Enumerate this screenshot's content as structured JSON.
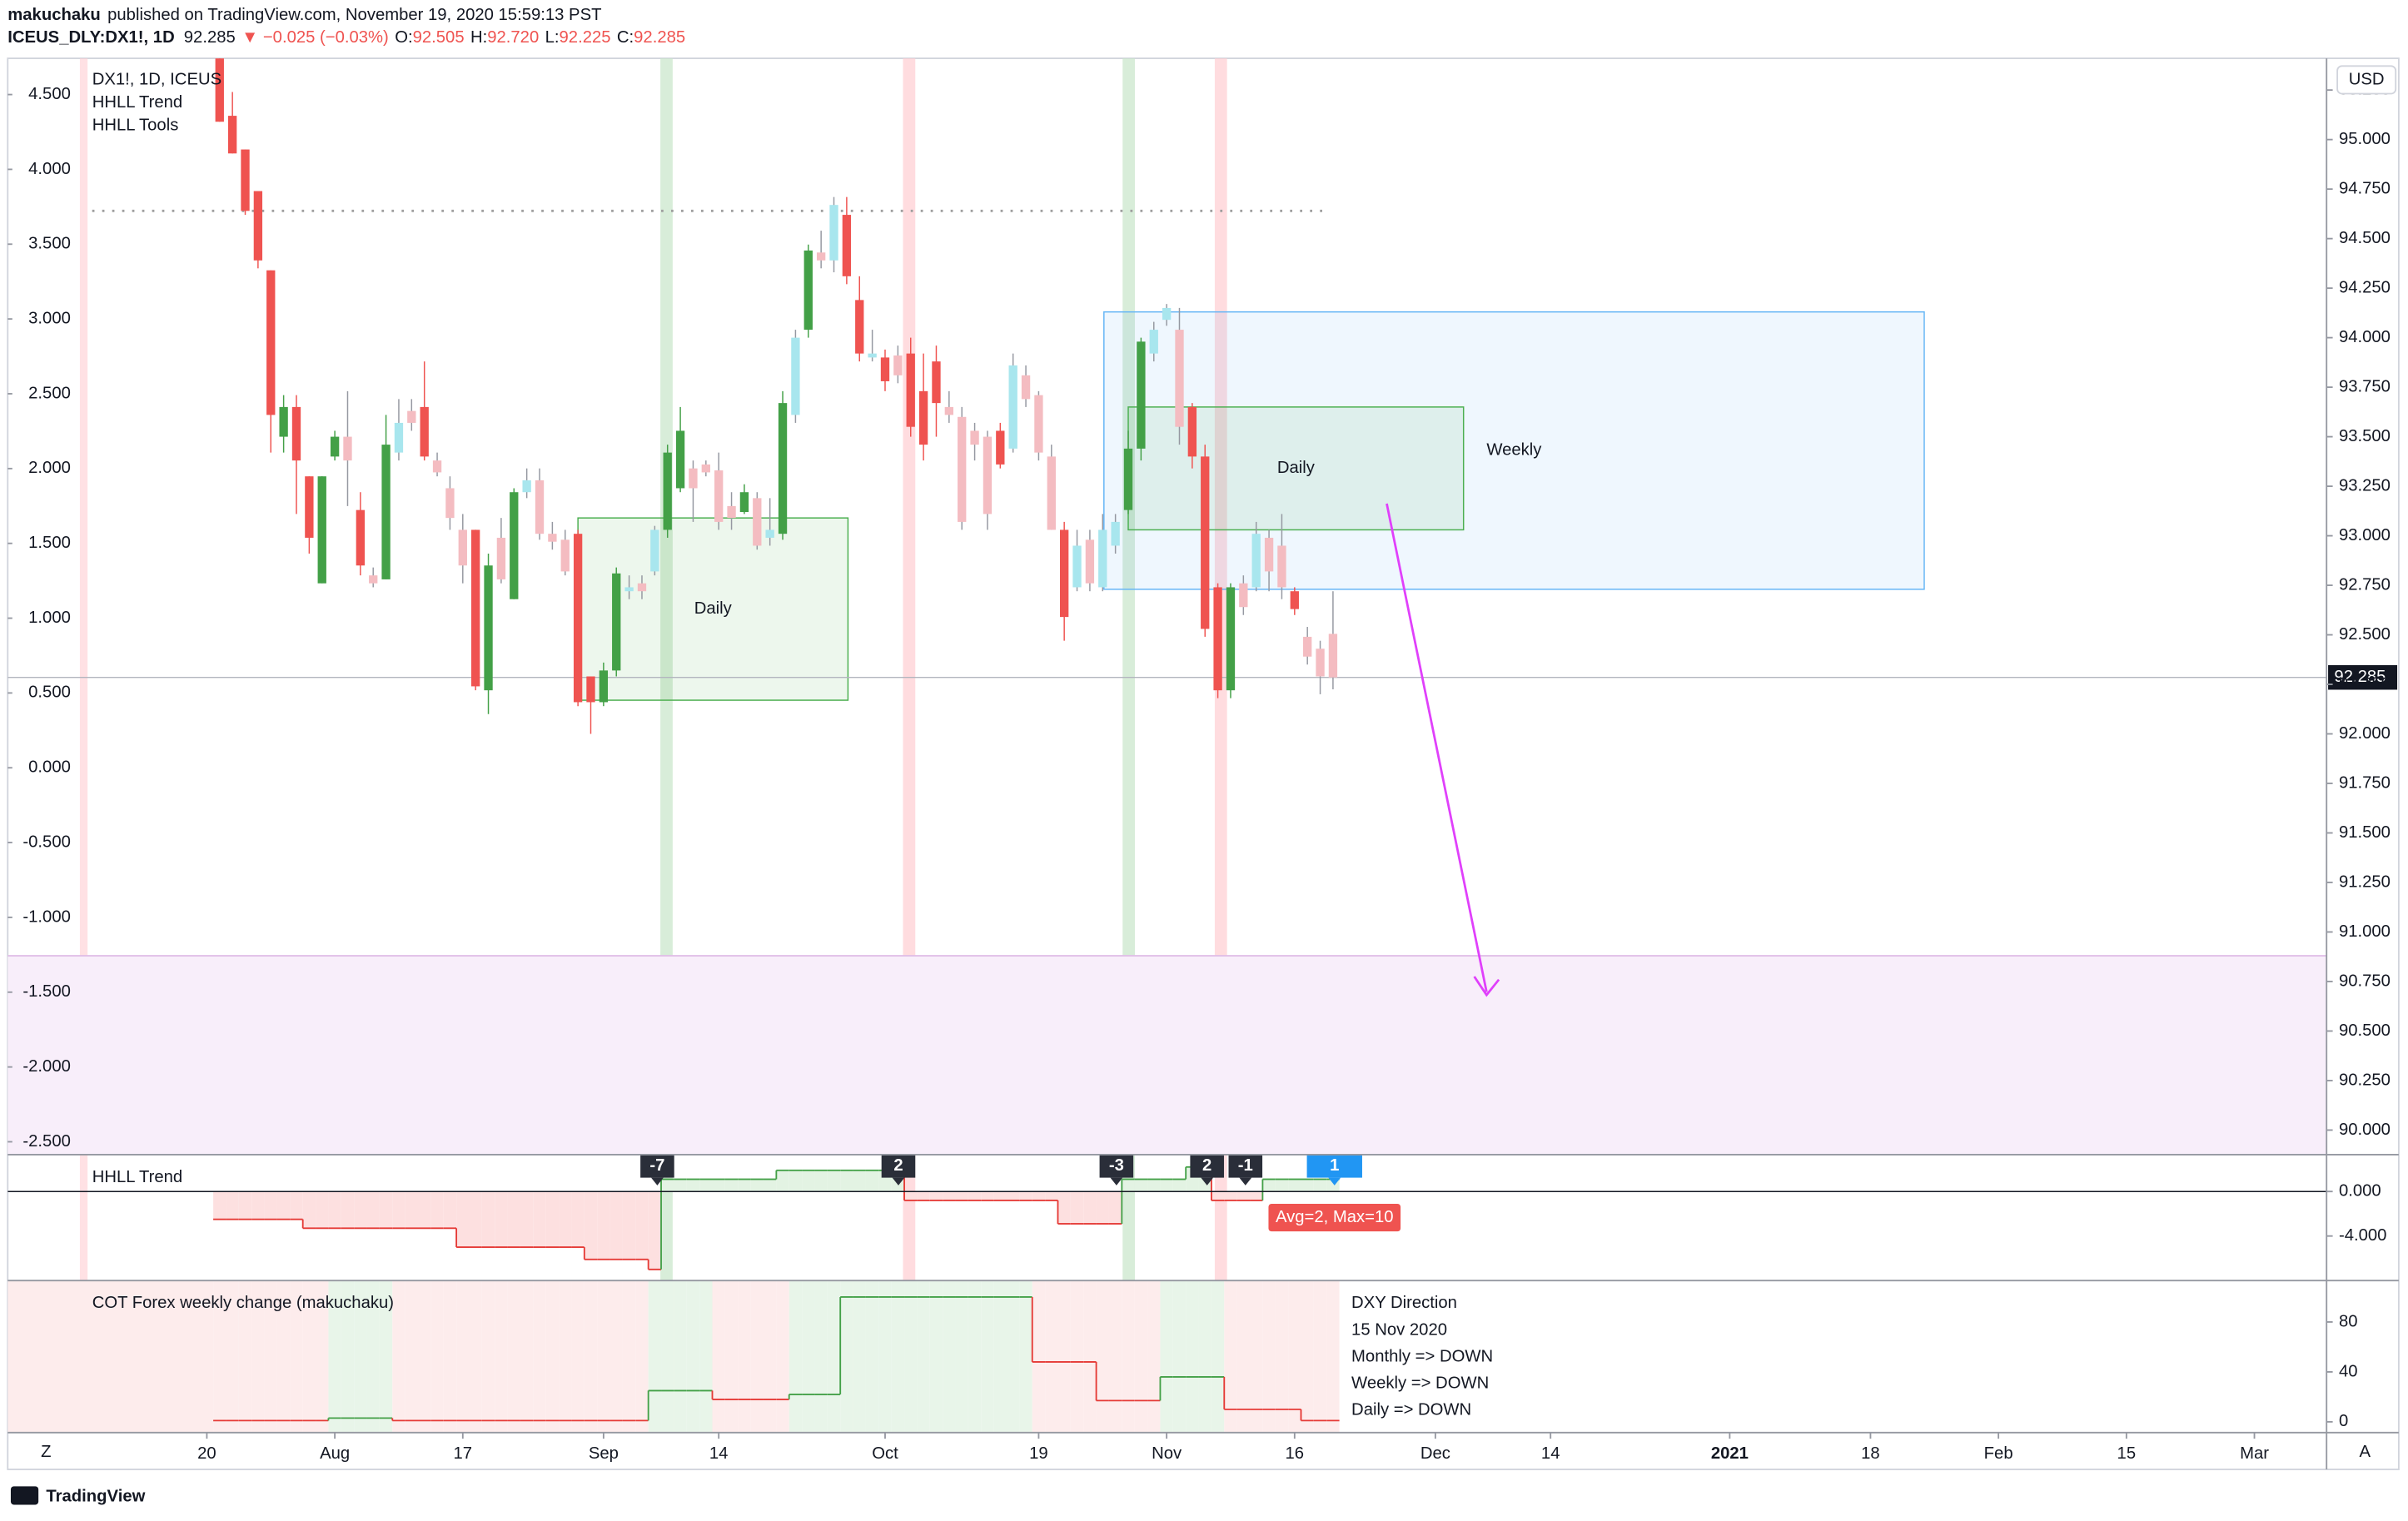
{
  "header": {
    "author": "makuchaku",
    "published": "published on TradingView.com, November 19, 2020 15:59:13 PST",
    "symbol": "ICEUS_DLY:DX1!, 1D",
    "price": "92.285",
    "change": "▼ −0.025 (−0.03%)",
    "ohlc": [
      {
        "label": "O:",
        "value": "92.505"
      },
      {
        "label": "H:",
        "value": "92.720"
      },
      {
        "label": "L:",
        "value": "92.225"
      },
      {
        "label": "C:",
        "value": "92.285"
      }
    ]
  },
  "chart_data": [
    {
      "type": "candlestick",
      "legend": [
        "DX1!, 1D, ICEUS",
        "HHLL Trend",
        "HHLL Tools"
      ],
      "currency": "USD",
      "open": [
        95.41,
        95.12,
        94.95,
        94.74,
        94.34,
        93.5,
        93.65,
        93.3,
        92.76,
        93.4,
        93.5,
        93.13,
        92.8,
        92.78,
        93.42,
        93.63,
        93.65,
        93.38,
        93.24,
        93.03,
        93.03,
        92.22,
        92.99,
        92.68,
        93.22,
        93.28,
        93.01,
        92.98,
        93.01,
        92.29,
        92.16,
        92.32,
        92.72,
        92.76,
        92.82,
        93.03,
        93.24,
        93.34,
        93.36,
        93.33,
        93.15,
        93.12,
        93.19,
        92.99,
        93.01,
        93.61,
        94.04,
        94.43,
        94.39,
        94.62,
        94.19,
        93.9,
        93.9,
        93.91,
        93.92,
        93.73,
        93.88,
        93.65,
        93.6,
        93.53,
        93.5,
        93.53,
        93.44,
        93.81,
        93.71,
        93.4,
        93.03,
        92.74,
        92.98,
        92.74,
        92.95,
        93.13,
        93.44,
        93.92,
        94.09,
        94.04,
        93.65,
        93.4,
        92.74,
        92.22,
        92.76,
        92.74,
        92.99,
        92.95,
        92.72,
        92.49,
        92.43,
        92.505
      ],
      "high": [
        95.41,
        95.24,
        94.95,
        94.74,
        94.34,
        93.71,
        93.71,
        93.3,
        93.3,
        93.53,
        93.73,
        93.22,
        92.84,
        93.61,
        93.69,
        93.69,
        93.88,
        93.42,
        93.3,
        93.11,
        93.03,
        92.91,
        93.09,
        93.24,
        93.34,
        93.34,
        93.07,
        93.03,
        93.03,
        92.29,
        92.36,
        92.84,
        92.8,
        92.8,
        93.05,
        93.46,
        93.65,
        93.38,
        93.38,
        93.42,
        93.22,
        93.26,
        93.22,
        93.19,
        93.73,
        94.04,
        94.47,
        94.54,
        94.71,
        94.71,
        94.31,
        94.04,
        93.94,
        93.96,
        94.0,
        93.92,
        93.96,
        93.73,
        93.65,
        93.57,
        93.53,
        93.57,
        93.92,
        93.86,
        93.73,
        93.46,
        93.07,
        93.03,
        93.03,
        93.11,
        93.11,
        93.53,
        94.0,
        94.08,
        94.17,
        94.15,
        93.67,
        93.46,
        92.76,
        92.76,
        92.8,
        93.07,
        93.03,
        93.11,
        92.74,
        92.54,
        92.47,
        92.72
      ],
      "low": [
        95.09,
        94.93,
        94.62,
        94.35,
        93.42,
        93.42,
        93.11,
        92.91,
        92.76,
        93.38,
        93.15,
        92.8,
        92.74,
        92.78,
        93.38,
        93.53,
        93.38,
        93.3,
        93.03,
        92.76,
        92.22,
        92.1,
        92.76,
        92.68,
        93.19,
        92.98,
        92.93,
        92.8,
        92.14,
        92.0,
        92.14,
        92.29,
        92.68,
        92.68,
        92.8,
        92.99,
        93.22,
        93.07,
        93.3,
        93.03,
        93.03,
        93.11,
        92.93,
        92.95,
        92.98,
        93.57,
        94.0,
        94.35,
        94.33,
        94.27,
        93.88,
        93.88,
        93.73,
        93.77,
        93.5,
        93.38,
        93.5,
        93.57,
        93.03,
        93.38,
        93.03,
        93.34,
        93.42,
        93.65,
        93.38,
        93.03,
        92.47,
        92.72,
        92.72,
        92.72,
        92.91,
        93.11,
        93.38,
        93.88,
        94.06,
        93.46,
        93.34,
        92.49,
        92.18,
        92.18,
        92.6,
        92.72,
        92.72,
        92.68,
        92.6,
        92.35,
        92.2,
        92.225
      ],
      "close": [
        95.09,
        94.93,
        94.64,
        94.39,
        93.61,
        93.65,
        93.38,
        92.99,
        93.3,
        93.5,
        93.38,
        92.85,
        92.76,
        93.46,
        93.57,
        93.57,
        93.4,
        93.32,
        93.09,
        92.85,
        92.24,
        92.85,
        92.78,
        93.22,
        93.28,
        93.01,
        92.97,
        92.82,
        92.16,
        92.16,
        92.32,
        92.81,
        92.74,
        92.72,
        93.03,
        93.42,
        93.53,
        93.24,
        93.32,
        93.07,
        93.09,
        93.22,
        92.95,
        93.03,
        93.67,
        94.0,
        94.44,
        94.39,
        94.67,
        94.31,
        93.92,
        93.92,
        93.78,
        93.81,
        93.55,
        93.46,
        93.67,
        93.61,
        93.07,
        93.46,
        93.11,
        93.36,
        93.86,
        93.69,
        93.42,
        93.03,
        92.59,
        92.95,
        92.76,
        93.03,
        93.07,
        93.44,
        93.98,
        94.04,
        94.15,
        93.55,
        93.4,
        92.53,
        92.22,
        92.74,
        92.64,
        93.01,
        92.82,
        92.74,
        92.63,
        92.39,
        92.29,
        92.285
      ],
      "colors": [
        "#ef5350",
        "#ef5350",
        "#ef5350",
        "#ef5350",
        "#ef5350",
        "#43a047",
        "#ef5350",
        "#ef5350",
        "#43a047",
        "#43a047",
        "#f4bcc1",
        "#ef5350",
        "#f4bcc1",
        "#43a047",
        "#a8e6ee",
        "#f4bcc1",
        "#ef5350",
        "#f4bcc1",
        "#f4bcc1",
        "#f4bcc1",
        "#ef5350",
        "#43a047",
        "#f4bcc1",
        "#43a047",
        "#a8e6ee",
        "#f4bcc1",
        "#f4bcc1",
        "#f4bcc1",
        "#ef5350",
        "#ef5350",
        "#43a047",
        "#43a047",
        "#a8e6ee",
        "#f4bcc1",
        "#a8e6ee",
        "#43a047",
        "#43a047",
        "#f4bcc1",
        "#f4bcc1",
        "#f4bcc1",
        "#f4bcc1",
        "#43a047",
        "#f4bcc1",
        "#a8e6ee",
        "#43a047",
        "#a8e6ee",
        "#43a047",
        "#f4bcc1",
        "#a8e6ee",
        "#ef5350",
        "#ef5350",
        "#a8e6ee",
        "#ef5350",
        "#f4bcc1",
        "#ef5350",
        "#ef5350",
        "#ef5350",
        "#f4bcc1",
        "#f4bcc1",
        "#f4bcc1",
        "#f4bcc1",
        "#ef5350",
        "#a8e6ee",
        "#f4bcc1",
        "#f4bcc1",
        "#f4bcc1",
        "#ef5350",
        "#a8e6ee",
        "#f4bcc1",
        "#a8e6ee",
        "#a8e6ee",
        "#43a047",
        "#43a047",
        "#a8e6ee",
        "#a8e6ee",
        "#f4bcc1",
        "#ef5350",
        "#ef5350",
        "#ef5350",
        "#43a047",
        "#f4bcc1",
        "#a8e6ee",
        "#f4bcc1",
        "#f4bcc1",
        "#ef5350",
        "#f4bcc1",
        "#f4bcc1",
        "#f4bcc1"
      ],
      "xlim": [
        -16.56,
        164.64
      ],
      "xticks": [
        {
          "value": -1,
          "label": "20"
        },
        {
          "value": 9,
          "label": "Aug"
        },
        {
          "value": 19,
          "label": "17"
        },
        {
          "value": 30,
          "label": "Sep"
        },
        {
          "value": 39,
          "label": "14"
        },
        {
          "value": 52,
          "label": "Oct"
        },
        {
          "value": 64,
          "label": "19"
        },
        {
          "value": 74,
          "label": "Nov"
        },
        {
          "value": 84,
          "label": "16"
        },
        {
          "value": 95,
          "label": "Dec"
        },
        {
          "value": 104,
          "label": "14"
        },
        {
          "value": 118,
          "label": "2021"
        },
        {
          "value": 129,
          "label": "18"
        },
        {
          "value": 139,
          "label": "Feb"
        },
        {
          "value": 149,
          "label": "15"
        },
        {
          "value": 159,
          "label": "Mar"
        }
      ],
      "ylim": [
        89.876,
        95.41
      ],
      "yticks": [
        {
          "value": 90,
          "label": "90.000"
        },
        {
          "value": 90.25,
          "label": "90.250"
        },
        {
          "value": 90.5,
          "label": "90.500"
        },
        {
          "value": 90.75,
          "label": "90.750"
        },
        {
          "value": 91,
          "label": "91.000"
        },
        {
          "value": 91.25,
          "label": "91.250"
        },
        {
          "value": 91.5,
          "label": "91.500"
        },
        {
          "value": 91.75,
          "label": "91.750"
        },
        {
          "value": 92,
          "label": "92.000"
        },
        {
          "value": 92.25,
          "label": "92.250"
        },
        {
          "value": 92.5,
          "label": "92.500"
        },
        {
          "value": 92.75,
          "label": "92.750"
        },
        {
          "value": 93,
          "label": "93.000"
        },
        {
          "value": 93.25,
          "label": "93.250"
        },
        {
          "value": 93.5,
          "label": "93.500"
        },
        {
          "value": 93.75,
          "label": "93.750"
        },
        {
          "value": 94,
          "label": "94.000"
        },
        {
          "value": 94.25,
          "label": "94.250"
        },
        {
          "value": 94.5,
          "label": "94.500"
        },
        {
          "value": 94.75,
          "label": "94.750"
        },
        {
          "value": 95,
          "label": "95.000"
        },
        {
          "value": 95.25,
          "label": "95.250"
        }
      ],
      "y2lim": [
        -2.586,
        4.742
      ],
      "y2ticks": [
        {
          "value": 4.5,
          "label": "4.500"
        },
        {
          "value": 4,
          "label": "4.000"
        },
        {
          "value": 3.5,
          "label": "3.500"
        },
        {
          "value": 3,
          "label": "3.000"
        },
        {
          "value": 2.5,
          "label": "2.500"
        },
        {
          "value": 2,
          "label": "2.000"
        },
        {
          "value": 1.5,
          "label": "1.500"
        },
        {
          "value": 1,
          "label": "1.000"
        },
        {
          "value": 0.5,
          "label": "0.500"
        },
        {
          "value": 0,
          "label": "0.000"
        },
        {
          "value": -0.5,
          "label": "-0.500"
        },
        {
          "value": -1,
          "label": "-1.000"
        },
        {
          "value": -1.5,
          "label": "-1.500"
        },
        {
          "value": -2,
          "label": "-2.000"
        },
        {
          "value": -2.5,
          "label": "-2.500"
        }
      ],
      "last_price": 92.285,
      "hlines": [
        94.64
      ],
      "zone": [
        89.876,
        90.88
      ],
      "boxes": [
        {
          "label": "Weekly",
          "top": 94.13,
          "bottom": 92.73,
          "start": 69.1,
          "end": 133.2,
          "color": "#64b5f6"
        },
        {
          "label": "Daily",
          "top": 93.09,
          "bottom": 92.17,
          "start": 28,
          "end": 49.1,
          "color": "#4caf50"
        },
        {
          "label": "Daily",
          "top": 93.65,
          "bottom": 93.03,
          "start": 71,
          "end": 97.2,
          "color": "#4caf50"
        }
      ]
    },
    {
      "type": "step",
      "title": "HHLL Trend",
      "xlim": [
        -16.56,
        164.64
      ],
      "values": [
        -2.5,
        -2.5,
        -2.5,
        -2.5,
        -2.5,
        -2.5,
        -2.5,
        -3.3,
        -3.3,
        -3.3,
        -3.3,
        -3.3,
        -3.3,
        -3.3,
        -3.3,
        -3.3,
        -3.3,
        -3.3,
        -3.3,
        -5,
        -5,
        -5,
        -5,
        -5,
        -5,
        -5,
        -5,
        -5,
        -5,
        -6.1,
        -6.1,
        -6.1,
        -6.1,
        -6.1,
        -7,
        1.1,
        1.1,
        1.1,
        1.1,
        1.1,
        1.1,
        1.1,
        1.1,
        1.1,
        1.9,
        1.9,
        1.9,
        1.9,
        1.9,
        1.9,
        1.9,
        1.9,
        1.9,
        1.9,
        -0.8,
        -0.8,
        -0.8,
        -0.8,
        -0.8,
        -0.8,
        -0.8,
        -0.8,
        -0.8,
        -0.8,
        -0.8,
        -0.8,
        -2.9,
        -2.9,
        -2.9,
        -2.9,
        -2.9,
        1.1,
        1.1,
        1.1,
        1.1,
        1.1,
        2.2,
        2.2,
        -0.8,
        -0.8,
        -0.8,
        -0.8,
        1.1,
        1.1,
        1.1,
        1.1,
        1.1,
        1.1
      ],
      "ylim": [
        -8,
        3.31
      ],
      "yticks": [
        {
          "value": 0,
          "label": "0.000"
        },
        {
          "value": -4,
          "label": "-4.000"
        }
      ],
      "signals": [
        -7,
        2,
        -3,
        2,
        -1,
        1
      ],
      "annotation": "Avg=2, Max=10"
    },
    {
      "type": "step",
      "title": "COT Forex weekly change (makuchaku)",
      "xlim": [
        -16.56,
        164.64
      ],
      "values": [
        1,
        1,
        1,
        1,
        1,
        1,
        1,
        1,
        1,
        3,
        3,
        3,
        3,
        3,
        1,
        1,
        1,
        1,
        1,
        1,
        1,
        1,
        1,
        1,
        1,
        1,
        1,
        1,
        1,
        1,
        1,
        1,
        1,
        1,
        25,
        25,
        25,
        25,
        25,
        18,
        18,
        18,
        18,
        18,
        18,
        22,
        22,
        22,
        22,
        100,
        100,
        100,
        100,
        100,
        100,
        100,
        100,
        100,
        100,
        100,
        100,
        100,
        100,
        100,
        48,
        48,
        48,
        48,
        48,
        17,
        17,
        17,
        17,
        17,
        36,
        36,
        36,
        36,
        36,
        10,
        10,
        10,
        10,
        10,
        10,
        1,
        1,
        1
      ],
      "ylim": [
        -8.6,
        113.2
      ],
      "yticks": [
        0,
        40,
        80
      ],
      "notes": [
        "DXY Direction",
        "15 Nov 2020",
        "Monthly => DOWN",
        "Weekly => DOWN",
        "Daily => DOWN"
      ]
    }
  ],
  "footer": {
    "logo": "TradingView",
    "left_button": "Z",
    "right_button": "A"
  }
}
